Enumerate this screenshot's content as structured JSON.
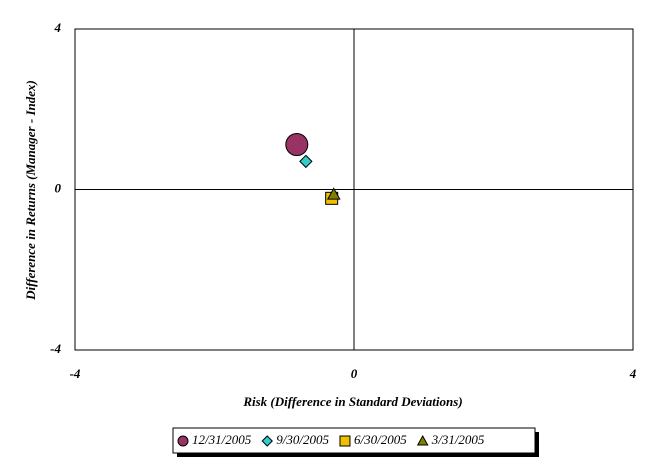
{
  "chart_data": {
    "type": "scatter",
    "x_label": "Risk (Difference in Standard Deviations)",
    "y_label": "Difference in Returns (Manager - Index)",
    "xlim": [
      -4,
      4
    ],
    "ylim": [
      -4,
      4
    ],
    "xticks": [
      -4,
      0,
      4
    ],
    "yticks": [
      -4,
      0,
      4
    ],
    "legend": "bottom",
    "series": [
      {
        "name": "12/31/2005",
        "color": "#993366",
        "marker": "circle",
        "x": [
          -0.82
        ],
        "y": [
          1.12
        ]
      },
      {
        "name": "9/30/2005",
        "color": "#33cccc",
        "marker": "diamond",
        "x": [
          -0.69
        ],
        "y": [
          0.7
        ]
      },
      {
        "name": "6/30/2005",
        "color": "#f0c000",
        "marker": "square",
        "x": [
          -0.32
        ],
        "y": [
          -0.22
        ]
      },
      {
        "name": "3/31/2005",
        "color": "#808000",
        "marker": "triangle",
        "x": [
          -0.29
        ],
        "y": [
          -0.12
        ]
      }
    ]
  }
}
